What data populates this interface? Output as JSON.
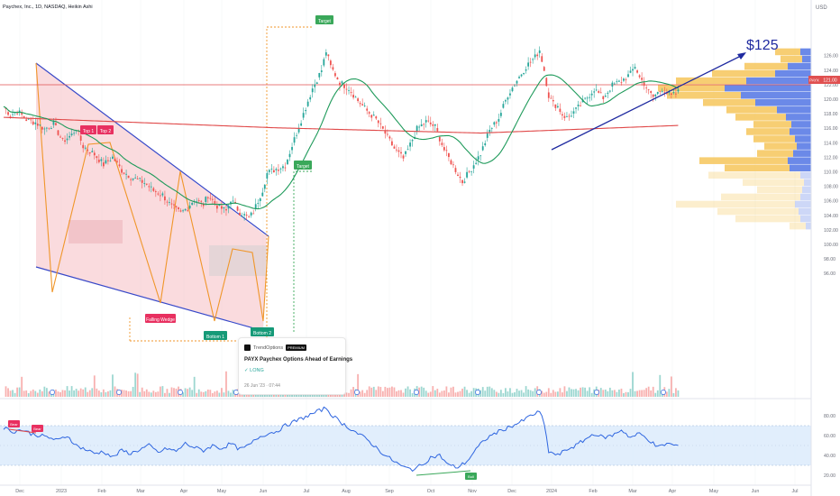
{
  "header": {
    "title": "Paychex, Inc., 1D, NASDAQ, Heikin Ashi"
  },
  "colors": {
    "up": "#26a69a",
    "down": "#ef5350",
    "wedge_line": "#3848c8",
    "wedge_fill": "#f8c7cc",
    "pattern": "#f0962a",
    "ma50": "#1e9a5a",
    "ma200": "#e04848",
    "price_line": "#e05050",
    "trend": "#1f2aa0",
    "vp_up": "#5b7ce6",
    "vp_down": "#f6c65b",
    "rsi": "#2f66e0"
  },
  "labels": {
    "top1": "Top 1",
    "top2": "Top 2",
    "falling_wedge": "Falling Wedge",
    "bottom1": "Bottom 1",
    "bottom2": "Bottom 2",
    "target1": "Target",
    "target2": "Target",
    "price_target": "$125",
    "rsi_label1": "Bear",
    "rsi_label2": "Bear",
    "rsi_label3": "Bull"
  },
  "idea_card": {
    "author": "TrendOptions",
    "badge": "PREMIUM",
    "title": "PAYX Paychex Options Ahead of Earnings",
    "direction": "✓ LONG",
    "date": "26 Jun '23 · 07:44"
  },
  "chart_data": {
    "type": "line",
    "title": "Paychex, Inc., 1D, NASDAQ, Heikin Ashi",
    "symbol": "PAYX",
    "current_price": 121.0,
    "price_axis": {
      "ticks": [
        126.0,
        124.0,
        122.0,
        120.0,
        118.0,
        116.0,
        114.0,
        112.0,
        110.0,
        108.0,
        106.0,
        104.0,
        102.0,
        100.0,
        98.0,
        96.0
      ],
      "unit": "USD"
    },
    "time_axis": {
      "ticks": [
        "Dec",
        "2023",
        "Feb",
        "Mar",
        "Apr",
        "May",
        "Jun",
        "Jul",
        "Aug",
        "Sep",
        "Oct",
        "Nov",
        "Dec",
        "2024",
        "Feb",
        "Mar",
        "Apr",
        "May",
        "Jun",
        "Jul"
      ]
    },
    "price_series": [
      [
        0,
        119.0
      ],
      [
        3,
        117.8
      ],
      [
        6,
        118.4
      ],
      [
        10,
        117.2
      ],
      [
        14,
        116.8
      ],
      [
        18,
        115.9
      ],
      [
        22,
        116.6
      ],
      [
        26,
        114.2
      ],
      [
        30,
        115.1
      ],
      [
        32,
        116.0
      ],
      [
        35,
        113.5
      ],
      [
        40,
        112.4
      ],
      [
        44,
        111.0
      ],
      [
        48,
        112.0
      ],
      [
        52,
        110.2
      ],
      [
        56,
        109.3
      ],
      [
        62,
        108.5
      ],
      [
        66,
        107.4
      ],
      [
        70,
        106.8
      ],
      [
        74,
        105.2
      ],
      [
        78,
        104.3
      ],
      [
        80,
        104.8
      ],
      [
        84,
        106.2
      ],
      [
        88,
        105.5
      ],
      [
        90,
        106.8
      ],
      [
        94,
        105.3
      ],
      [
        98,
        104.6
      ],
      [
        100,
        106.2
      ],
      [
        104,
        104.4
      ],
      [
        108,
        103.6
      ],
      [
        110,
        104.5
      ],
      [
        114,
        107.5
      ],
      [
        116,
        109.8
      ],
      [
        120,
        110.4
      ],
      [
        124,
        110.9
      ],
      [
        128,
        114.5
      ],
      [
        132,
        118.0
      ],
      [
        136,
        121.5
      ],
      [
        140,
        124.0
      ],
      [
        142,
        126.6
      ],
      [
        144,
        124.5
      ],
      [
        148,
        122.3
      ],
      [
        152,
        121.5
      ],
      [
        156,
        119.8
      ],
      [
        160,
        118.4
      ],
      [
        164,
        117.2
      ],
      [
        168,
        115.3
      ],
      [
        172,
        113.2
      ],
      [
        176,
        111.8
      ],
      [
        178,
        113.0
      ],
      [
        182,
        115.9
      ],
      [
        186,
        116.9
      ],
      [
        190,
        116.2
      ],
      [
        194,
        113.0
      ],
      [
        198,
        110.8
      ],
      [
        202,
        108.6
      ],
      [
        206,
        110.5
      ],
      [
        210,
        112.5
      ],
      [
        214,
        115.7
      ],
      [
        218,
        117.4
      ],
      [
        222,
        120.6
      ],
      [
        226,
        122.6
      ],
      [
        230,
        124.5
      ],
      [
        234,
        125.8
      ],
      [
        236,
        126.8
      ],
      [
        238,
        124.0
      ],
      [
        240,
        120.5
      ],
      [
        242,
        119.4
      ],
      [
        244,
        119.0
      ],
      [
        246,
        117.9
      ],
      [
        248,
        117.4
      ],
      [
        252,
        118.5
      ],
      [
        256,
        119.9
      ],
      [
        260,
        121.4
      ],
      [
        264,
        120.2
      ],
      [
        268,
        121.9
      ],
      [
        272,
        122.5
      ],
      [
        276,
        123.5
      ],
      [
        278,
        124.6
      ],
      [
        280,
        123.0
      ],
      [
        282,
        122.2
      ],
      [
        284,
        121.0
      ],
      [
        286,
        120.3
      ],
      [
        290,
        121.5
      ],
      [
        294,
        120.4
      ],
      [
        297,
        121.0
      ]
    ],
    "rsi_series": [
      [
        0,
        68
      ],
      [
        4,
        64
      ],
      [
        8,
        66
      ],
      [
        12,
        62
      ],
      [
        16,
        60
      ],
      [
        20,
        58
      ],
      [
        24,
        55
      ],
      [
        28,
        60
      ],
      [
        32,
        50
      ],
      [
        36,
        46
      ],
      [
        40,
        42
      ],
      [
        44,
        44
      ],
      [
        48,
        38
      ],
      [
        52,
        45
      ],
      [
        56,
        42
      ],
      [
        60,
        46
      ],
      [
        64,
        50
      ],
      [
        68,
        43
      ],
      [
        72,
        47
      ],
      [
        76,
        44
      ],
      [
        80,
        52
      ],
      [
        84,
        48
      ],
      [
        88,
        45
      ],
      [
        92,
        50
      ],
      [
        96,
        47
      ],
      [
        100,
        52
      ],
      [
        104,
        46
      ],
      [
        108,
        50
      ],
      [
        112,
        58
      ],
      [
        116,
        62
      ],
      [
        120,
        64
      ],
      [
        124,
        70
      ],
      [
        128,
        74
      ],
      [
        132,
        78
      ],
      [
        136,
        82
      ],
      [
        140,
        86
      ],
      [
        142,
        88
      ],
      [
        144,
        82
      ],
      [
        148,
        74
      ],
      [
        152,
        68
      ],
      [
        156,
        62
      ],
      [
        160,
        56
      ],
      [
        164,
        48
      ],
      [
        168,
        40
      ],
      [
        172,
        34
      ],
      [
        176,
        28
      ],
      [
        180,
        26
      ],
      [
        184,
        30
      ],
      [
        188,
        38
      ],
      [
        192,
        40
      ],
      [
        196,
        30
      ],
      [
        200,
        28
      ],
      [
        204,
        34
      ],
      [
        208,
        46
      ],
      [
        212,
        56
      ],
      [
        216,
        62
      ],
      [
        220,
        66
      ],
      [
        224,
        70
      ],
      [
        228,
        74
      ],
      [
        232,
        80
      ],
      [
        236,
        84
      ],
      [
        238,
        72
      ],
      [
        240,
        44
      ],
      [
        244,
        40
      ],
      [
        248,
        46
      ],
      [
        252,
        50
      ],
      [
        256,
        56
      ],
      [
        260,
        62
      ],
      [
        264,
        58
      ],
      [
        268,
        60
      ],
      [
        272,
        66
      ],
      [
        276,
        58
      ],
      [
        280,
        62
      ],
      [
        284,
        56
      ],
      [
        288,
        48
      ],
      [
        292,
        52
      ],
      [
        296,
        50
      ]
    ],
    "rsi_axis": {
      "ticks": [
        80.0,
        60.0,
        40.0,
        20.0
      ],
      "band": [
        30,
        70
      ]
    },
    "price_target": 125,
    "legend": "none",
    "grid": false
  }
}
